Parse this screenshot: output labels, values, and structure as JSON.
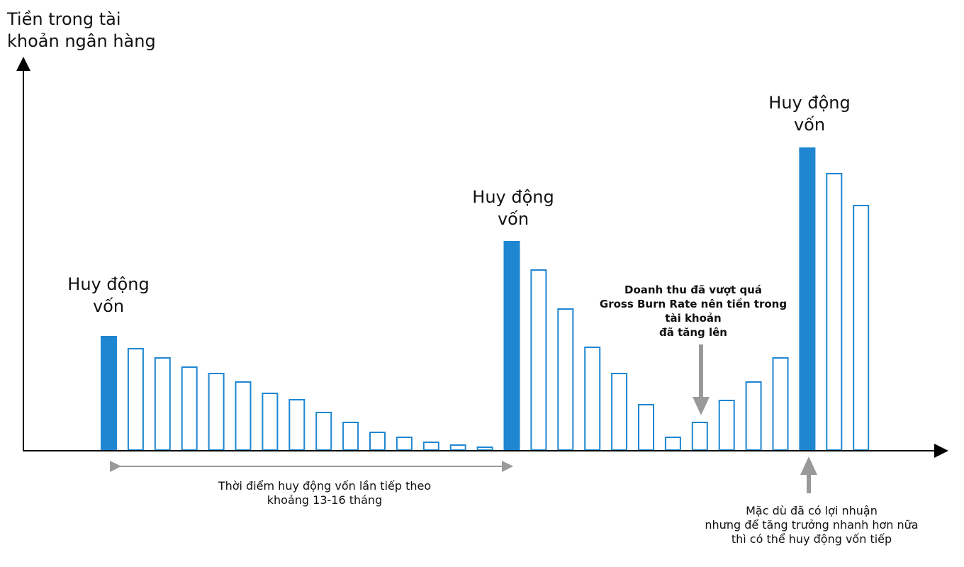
{
  "chart_data": {
    "type": "bar",
    "title": "",
    "ylabel": "Tiền trong tài khoản ngân hàng",
    "xlabel": "",
    "ylim": [
      0,
      550
    ],
    "grid": false,
    "values": [
      161,
      144,
      131,
      118,
      109,
      97,
      81,
      72,
      54,
      40,
      26,
      19,
      12,
      8,
      5,
      295,
      255,
      200,
      146,
      109,
      65,
      19,
      40,
      71,
      97,
      131,
      427,
      391,
      346
    ],
    "fundraise_indices": [
      0,
      15,
      26
    ],
    "colors": {
      "bar": "#1f86d1",
      "axis": "#000000",
      "arrow": "#999999"
    },
    "annotations": {
      "fundraise_1": "Huy động\nvốn",
      "fundraise_2": "Huy động\nvốn",
      "fundraise_3": "Huy động\nvốn",
      "revenue_note": "Doanh thu đã vượt quá\nGross Burn Rate nên tiền trong\ntài khoản\nđã tăng lên",
      "interval_note": "Thời điểm huy động vốn lần tiếp theo\nkhoảng 13-16 tháng",
      "profit_note": "Mặc dù đã có lợi nhuận\nnhưng để tăng trưởng nhanh hơn nữa\nthì có thể huy động vốn tiếp"
    }
  }
}
